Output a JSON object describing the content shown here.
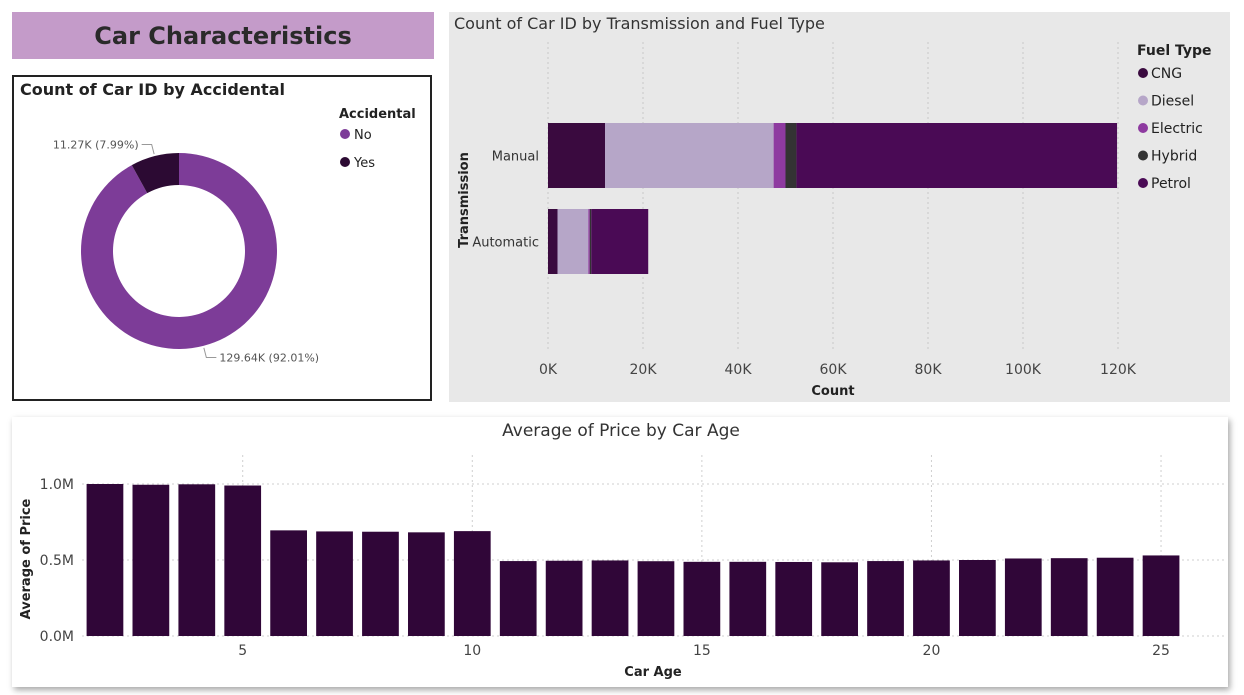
{
  "dashboard": {
    "title": "Car Characteristics"
  },
  "colors": {
    "banner": "#c49bc9",
    "no": "#7d3c98",
    "yes": "#2c0a33",
    "cng": "#3a0a3f",
    "diesel": "#b6a6c8",
    "electric": "#8e3aa0",
    "hybrid": "#333333",
    "petrol": "#4a0a55",
    "column": "#300638"
  },
  "chart_data": [
    {
      "type": "pie",
      "title": "Count of Car ID by Accidental",
      "legend_title": "Accidental",
      "legend_position": "top-right",
      "donut": true,
      "slices": [
        {
          "name": "No",
          "value": 129640,
          "label": "129.64K (92.01%)"
        },
        {
          "name": "Yes",
          "value": 11270,
          "label": "11.27K (7.99%)"
        }
      ]
    },
    {
      "type": "bar",
      "orientation": "horizontal",
      "stacked": true,
      "title": "Count of Car ID by Transmission and Fuel Type",
      "xlabel": "Count",
      "ylabel": "Transmission",
      "legend_title": "Fuel Type",
      "legend_position": "top-right",
      "categories": [
        "Manual",
        "Automatic"
      ],
      "xlim": [
        0,
        120000
      ],
      "xticks": [
        0,
        20000,
        40000,
        60000,
        80000,
        100000,
        120000
      ],
      "xtick_labels": [
        "0K",
        "20K",
        "40K",
        "60K",
        "80K",
        "100K",
        "120K"
      ],
      "grid": true,
      "series": [
        {
          "name": "CNG",
          "values": [
            12000,
            2000
          ]
        },
        {
          "name": "Diesel",
          "values": [
            35500,
            6500
          ]
        },
        {
          "name": "Electric",
          "values": [
            2500,
            300
          ]
        },
        {
          "name": "Hybrid",
          "values": [
            2300,
            300
          ]
        },
        {
          "name": "Petrol",
          "values": [
            67500,
            12000
          ]
        }
      ]
    },
    {
      "type": "bar",
      "title": "Average of Price by Car Age",
      "xlabel": "Car Age",
      "ylabel": "Average of Price",
      "x": [
        2,
        3,
        4,
        5,
        6,
        7,
        8,
        9,
        10,
        11,
        12,
        13,
        14,
        15,
        16,
        17,
        18,
        19,
        20,
        21,
        22,
        23,
        24,
        25
      ],
      "values": [
        1000000,
        995000,
        998000,
        990000,
        695000,
        688000,
        686000,
        682000,
        690000,
        493000,
        495000,
        497000,
        492000,
        488000,
        488000,
        487000,
        485000,
        493000,
        497000,
        500000,
        510000,
        512000,
        515000,
        530000
      ],
      "ylim": [
        0,
        1000000
      ],
      "yticks": [
        0,
        500000,
        1000000
      ],
      "ytick_labels": [
        "0.0M",
        "0.5M",
        "1.0M"
      ],
      "xticks": [
        5,
        10,
        15,
        20,
        25
      ],
      "xtick_labels": [
        "5",
        "10",
        "15",
        "20",
        "25"
      ],
      "grid": true
    }
  ]
}
